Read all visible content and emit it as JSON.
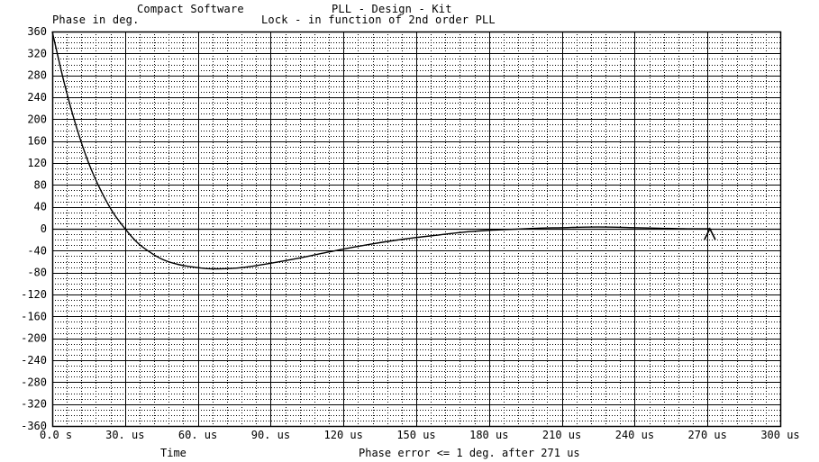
{
  "header": {
    "software": "Compact Software",
    "product": "PLL - Design - Kit",
    "y_axis_caption": "Phase in deg.",
    "plot_title": "Lock - in function of 2nd order PLL"
  },
  "footer": {
    "x_axis_caption": "Time",
    "status_text": "Phase error <= 1 deg. after 271 us"
  },
  "colors": {
    "background": "#ffffff",
    "ink": "#000000"
  },
  "chart_data": {
    "type": "line",
    "title": "Lock - in function of 2nd order PLL",
    "xlabel": "Time",
    "ylabel": "Phase in deg.",
    "xlim": [
      0,
      300
    ],
    "ylim": [
      -360,
      360
    ],
    "x_ticks": [
      0,
      30,
      60,
      90,
      120,
      150,
      180,
      210,
      240,
      270,
      300
    ],
    "x_tick_labels": [
      "0.0 s",
      "30. us",
      "60. us",
      "90. us",
      "120 us",
      "150 us",
      "180 us",
      "210 us",
      "240 us",
      "270 us",
      "300 us"
    ],
    "y_ticks": [
      360,
      320,
      280,
      240,
      200,
      160,
      120,
      80,
      40,
      0,
      -40,
      -80,
      -120,
      -160,
      -200,
      -240,
      -280,
      -320,
      -360
    ],
    "y_tick_labels": [
      "360",
      "320",
      "280",
      "240",
      "200",
      "160",
      "120",
      "80",
      "40",
      "0",
      "-40",
      "-80",
      "-120",
      "-160",
      "-200",
      "-240",
      "-280",
      "-320",
      "-360"
    ],
    "grid": true,
    "series": [
      {
        "x": [
          0,
          5,
          10,
          15,
          20,
          25,
          30,
          35,
          40,
          45,
          50,
          55,
          60,
          65,
          70,
          75,
          80,
          90,
          100,
          110,
          120,
          130,
          140,
          150,
          160,
          170,
          180,
          190,
          200,
          210,
          220,
          230,
          240,
          250,
          260,
          271
        ],
        "values": [
          360,
          265,
          185,
          120,
          70,
          30,
          0,
          -25,
          -42,
          -55,
          -63,
          -68,
          -71,
          -73,
          -73,
          -72,
          -70,
          -63,
          -55,
          -46,
          -37,
          -29,
          -22,
          -16,
          -11,
          -6,
          -3,
          -1,
          1,
          2,
          3,
          3,
          2,
          1,
          0,
          0
        ]
      }
    ],
    "annotations": [
      {
        "type": "marker",
        "x": 271,
        "y": 0
      }
    ]
  }
}
